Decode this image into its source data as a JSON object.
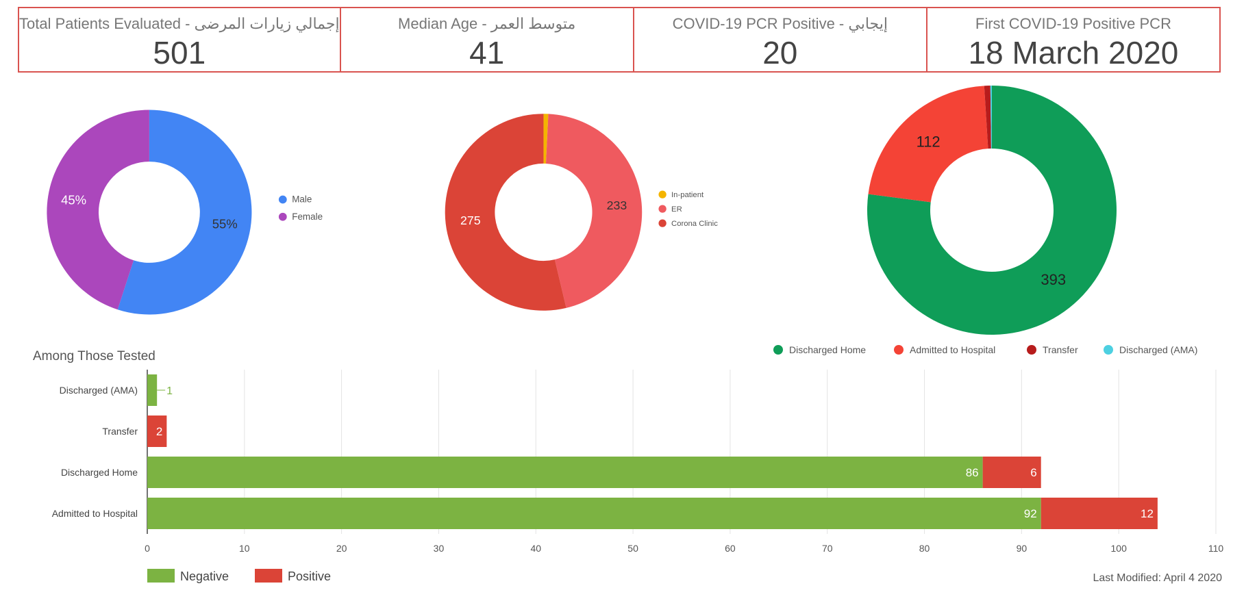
{
  "kpis": [
    {
      "label": "Total Patients Evaluated - إجمالي زيارات المرضى",
      "value": "501"
    },
    {
      "label": "Median Age - متوسط العمر",
      "value": "41"
    },
    {
      "label": "COVID-19 PCR Positive - إيجابي",
      "value": "20"
    },
    {
      "label": "First COVID-19 Positive PCR",
      "value": "18 March 2020"
    }
  ],
  "colors": {
    "male": "#4285f4",
    "female": "#ab47bc",
    "inpatient": "#f4b400",
    "er": "#ef5a5f",
    "corona_clinic": "#db4437",
    "discharged_home": "#0f9d58",
    "admitted": "#f44336",
    "transfer": "#b71c1c",
    "ama": "#4dd0e1",
    "negative": "#7cb342",
    "positive": "#db4437"
  },
  "chart_data": [
    {
      "type": "pie",
      "title": "",
      "categories": [
        "Male",
        "Female"
      ],
      "values": [
        55,
        45
      ],
      "labels": [
        "55%",
        "45%"
      ],
      "legend": "right"
    },
    {
      "type": "pie",
      "title": "",
      "categories": [
        "In-patient",
        "ER",
        "Corona Clinic"
      ],
      "values": [
        4,
        233,
        275
      ],
      "labels": [
        "",
        "233",
        "275"
      ],
      "legend": "right"
    },
    {
      "type": "pie",
      "title": "",
      "categories": [
        "Discharged Home",
        "Admitted to Hospital",
        "Transfer",
        "Discharged (AMA)"
      ],
      "values": [
        393,
        112,
        4,
        1
      ],
      "labels": [
        "393",
        "112",
        "",
        ""
      ],
      "legend": "bottom"
    },
    {
      "type": "bar",
      "orientation": "horizontal",
      "stacked": true,
      "title": "Among Those Tested",
      "categories": [
        "Discharged (AMA)",
        "Transfer",
        "Discharged Home",
        "Admitted to Hospital"
      ],
      "series": [
        {
          "name": "Negative",
          "values": [
            1,
            0,
            86,
            92
          ]
        },
        {
          "name": "Positive",
          "values": [
            0,
            2,
            6,
            12
          ]
        }
      ],
      "xlim": [
        0,
        110
      ],
      "xticks": [
        0,
        10,
        20,
        30,
        40,
        50,
        60,
        70,
        80,
        90,
        100,
        110
      ],
      "legend": "bottom-left"
    }
  ],
  "footer": {
    "last_modified": "Last Modified: April 4 2020"
  }
}
